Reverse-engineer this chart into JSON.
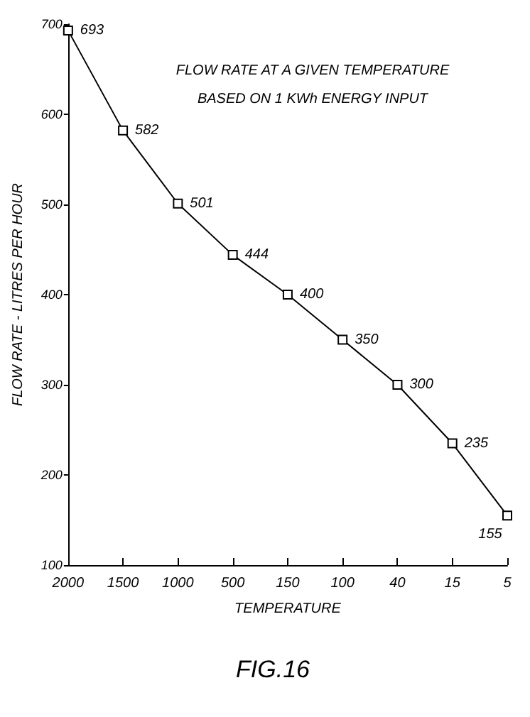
{
  "chart_data": {
    "type": "line",
    "title": "FLOW RATE AT A GIVEN TEMPERATURE",
    "subtitle": "BASED ON 1 KWh ENERGY INPUT",
    "xlabel": "TEMPERATURE",
    "ylabel": "FLOW RATE - LITRES PER HOUR",
    "categories": [
      "2000",
      "1500",
      "1000",
      "500",
      "150",
      "100",
      "40",
      "15",
      "5"
    ],
    "series": [
      {
        "color": "#000000",
        "values": [
          693,
          582,
          501,
          444,
          400,
          350,
          300,
          235,
          155
        ]
      }
    ],
    "ylim": [
      100,
      700
    ],
    "yticks": [
      100,
      200,
      300,
      400,
      500,
      600,
      700
    ],
    "data_labels": true,
    "marker": "square",
    "line_style": "solid",
    "grid": false,
    "annotations": [
      "FIG.16"
    ]
  }
}
